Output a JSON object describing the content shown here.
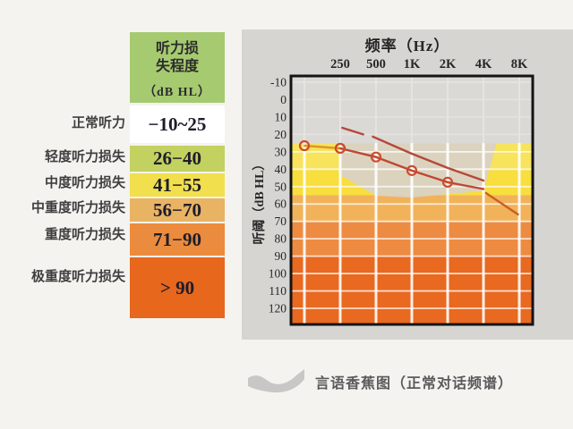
{
  "legend_table": {
    "header": {
      "title_line1": "听力损",
      "title_line2": "失程度",
      "unit": "（dB HL）",
      "bg": "#a6ca70"
    },
    "rows": [
      {
        "label": "正常听力",
        "range": "−10~25",
        "color": "#ffffff"
      },
      {
        "label": "轻度听力损失",
        "range": "26−40",
        "color": "#c2d15f"
      },
      {
        "label": "中度听力损失",
        "range": "41−55",
        "color": "#f1df4e"
      },
      {
        "label": "中重度听力损失",
        "range": "56−70",
        "color": "#e9b364"
      },
      {
        "label": "重度听力损失",
        "range": "71−90",
        "color": "#eb8b3d"
      },
      {
        "label": "极重度听力损失",
        "range": "> 90",
        "color": "#e7671d"
      }
    ]
  },
  "chart_data": {
    "type": "line",
    "title": "频率（Hz）",
    "ylabel": "听阈（dB HL）",
    "x_scale": "log2-octaves",
    "x_tick_labels": [
      "250",
      "500",
      "1K",
      "2K",
      "4K",
      "8K"
    ],
    "x_tick_freqs": [
      250,
      500,
      1000,
      2000,
      4000,
      8000
    ],
    "x_grid_freqs": [
      125,
      250,
      500,
      1000,
      2000,
      4000,
      8000
    ],
    "y_ticks": [
      -10,
      0,
      10,
      20,
      30,
      40,
      50,
      60,
      70,
      80,
      90,
      100,
      110,
      120
    ],
    "ylim": [
      -10,
      120
    ],
    "grid": true,
    "legend_position": "none",
    "severity_bands": [
      {
        "name": "normal",
        "from": -14,
        "to": 25,
        "color": "#dbd9d6"
      },
      {
        "name": "mild",
        "from": 25,
        "to": 40,
        "color": "#f7e35c"
      },
      {
        "name": "moderate",
        "from": 40,
        "to": 55,
        "color": "#f8de3e"
      },
      {
        "name": "moderately-severe",
        "from": 55,
        "to": 70,
        "color": "#f1b25a"
      },
      {
        "name": "severe",
        "from": 70,
        "to": 90,
        "color": "#ed8b42"
      },
      {
        "name": "profound",
        "from": 90,
        "to": 130,
        "color": "#e8691f"
      }
    ],
    "speech_banana": {
      "color": "#d9d2c4",
      "points_freq_db": [
        [
          250,
          25.2
        ],
        [
          5150,
          25.2
        ],
        [
          4000,
          52.5
        ],
        [
          1000,
          56.3
        ],
        [
          500,
          55.3
        ],
        [
          250,
          43.4
        ]
      ]
    },
    "series": [
      {
        "name": "threshold-125-250",
        "marker": "circle",
        "color": "#dc9630",
        "points": [
          [
            125,
            26.5
          ],
          [
            250,
            28
          ]
        ]
      },
      {
        "name": "threshold-250-2k",
        "marker": "circle",
        "color": "#bf4733",
        "points": [
          [
            250,
            28
          ],
          [
            500,
            33
          ],
          [
            1000,
            40.8
          ],
          [
            2000,
            47.5
          ]
        ]
      },
      {
        "name": "threshold-2k-4k",
        "marker": "none",
        "color": "#bf4733",
        "points": [
          [
            2000,
            47.5
          ],
          [
            4000,
            51.4
          ]
        ]
      },
      {
        "name": "threshold-4k-8k-drop",
        "marker": "none",
        "color": "#cc5e22",
        "points": [
          [
            4200,
            53.7
          ],
          [
            7800,
            66
          ]
        ]
      },
      {
        "name": "upper-reference-a",
        "marker": "none",
        "color": "#b6483a",
        "points": [
          [
            260,
            16.2
          ],
          [
            390,
            20
          ]
        ]
      },
      {
        "name": "upper-reference-b",
        "marker": "none",
        "color": "#b6483a",
        "points": [
          [
            470,
            21.3
          ],
          [
            1000,
            31.1
          ],
          [
            2000,
            39.3
          ],
          [
            4000,
            46.5
          ]
        ]
      }
    ],
    "marker_color": "#cd4c2e"
  },
  "caption": {
    "text": "言语香蕉图（正常对话频谱）",
    "swatch_color": "#c8c7c5"
  }
}
